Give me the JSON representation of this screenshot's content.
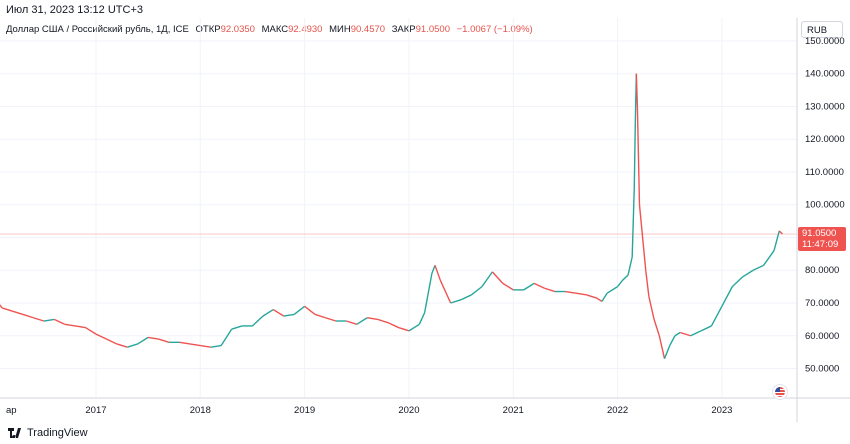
{
  "header": {
    "timestamp": "Июл 31, 2023 13:12 UTC+3",
    "symbol": "Доллар США / Российский рубль, 1Д, ICE",
    "open_label": "ОТКР",
    "open_value": "92.0350",
    "high_label": "МАКС",
    "high_value": "92.4930",
    "low_label": "МИН",
    "low_value": "90.4570",
    "close_label": "ЗАКР",
    "close_value": "91.0500",
    "change": "−1.0067 (−1.09%)"
  },
  "currency_button": "RUB",
  "price_tag": {
    "price": "91.0500",
    "countdown": "11:47:09"
  },
  "footer": {
    "brand": "TradingView"
  },
  "colors": {
    "up": "#26a69a",
    "down": "#ef5350",
    "last_price_line": "#ef5350"
  },
  "icons": {
    "flag": "us-flag-icon",
    "logo": "tradingview-logo-icon"
  },
  "chart_data": {
    "type": "line",
    "title": "Доллар США / Российский рубль, 1Д, ICE",
    "xlabel": "",
    "ylabel": "",
    "x_ticks": [
      "ар",
      "2017",
      "2018",
      "2019",
      "2020",
      "2021",
      "2022",
      "2023"
    ],
    "y_ticks": [
      "50.0000",
      "60.0000",
      "70.0000",
      "80.0000",
      "90.0000",
      "100.0000",
      "110.0000",
      "120.0000",
      "130.0000",
      "140.0000",
      "150.0000"
    ],
    "ylim": [
      41,
      157
    ],
    "grid": true,
    "series": [
      {
        "values": [
          [
            2016.0,
            75.5
          ],
          [
            2016.05,
            70.5
          ],
          [
            2016.1,
            68.5
          ],
          [
            2016.2,
            67.5
          ],
          [
            2016.3,
            66.5
          ],
          [
            2016.4,
            65.5
          ],
          [
            2016.5,
            64.5
          ],
          [
            2016.6,
            65.0
          ],
          [
            2016.7,
            63.5
          ],
          [
            2016.8,
            63.0
          ],
          [
            2016.9,
            62.5
          ],
          [
            2017.0,
            60.5
          ],
          [
            2017.1,
            59.0
          ],
          [
            2017.2,
            57.5
          ],
          [
            2017.3,
            56.5
          ],
          [
            2017.4,
            57.5
          ],
          [
            2017.5,
            59.5
          ],
          [
            2017.6,
            59.0
          ],
          [
            2017.7,
            58.0
          ],
          [
            2017.8,
            58.0
          ],
          [
            2017.9,
            57.5
          ],
          [
            2018.0,
            57.0
          ],
          [
            2018.1,
            56.5
          ],
          [
            2018.2,
            57.0
          ],
          [
            2018.3,
            62.0
          ],
          [
            2018.4,
            63.0
          ],
          [
            2018.5,
            63.0
          ],
          [
            2018.6,
            66.0
          ],
          [
            2018.7,
            68.0
          ],
          [
            2018.8,
            66.0
          ],
          [
            2018.9,
            66.5
          ],
          [
            2019.0,
            69.0
          ],
          [
            2019.1,
            66.5
          ],
          [
            2019.2,
            65.5
          ],
          [
            2019.3,
            64.5
          ],
          [
            2019.4,
            64.5
          ],
          [
            2019.5,
            63.5
          ],
          [
            2019.6,
            65.5
          ],
          [
            2019.7,
            65.0
          ],
          [
            2019.8,
            64.0
          ],
          [
            2019.9,
            62.5
          ],
          [
            2020.0,
            61.5
          ],
          [
            2020.1,
            63.5
          ],
          [
            2020.15,
            67.0
          ],
          [
            2020.22,
            79.0
          ],
          [
            2020.25,
            81.5
          ],
          [
            2020.3,
            77.0
          ],
          [
            2020.4,
            70.0
          ],
          [
            2020.5,
            71.0
          ],
          [
            2020.6,
            72.5
          ],
          [
            2020.7,
            75.0
          ],
          [
            2020.8,
            79.5
          ],
          [
            2020.9,
            76.0
          ],
          [
            2021.0,
            74.0
          ],
          [
            2021.1,
            74.0
          ],
          [
            2021.2,
            76.0
          ],
          [
            2021.3,
            74.5
          ],
          [
            2021.4,
            73.5
          ],
          [
            2021.5,
            73.5
          ],
          [
            2021.6,
            73.0
          ],
          [
            2021.7,
            72.5
          ],
          [
            2021.8,
            71.5
          ],
          [
            2021.85,
            70.5
          ],
          [
            2021.9,
            73.0
          ],
          [
            2022.0,
            75.0
          ],
          [
            2022.05,
            77.0
          ],
          [
            2022.1,
            78.5
          ],
          [
            2022.14,
            84.0
          ],
          [
            2022.16,
            105.0
          ],
          [
            2022.17,
            125.0
          ],
          [
            2022.18,
            140.0
          ],
          [
            2022.19,
            130.0
          ],
          [
            2022.21,
            100.0
          ],
          [
            2022.24,
            90.0
          ],
          [
            2022.27,
            80.0
          ],
          [
            2022.3,
            72.0
          ],
          [
            2022.35,
            65.0
          ],
          [
            2022.4,
            60.0
          ],
          [
            2022.45,
            53.0
          ],
          [
            2022.5,
            57.0
          ],
          [
            2022.55,
            60.0
          ],
          [
            2022.6,
            61.0
          ],
          [
            2022.7,
            60.0
          ],
          [
            2022.8,
            61.5
          ],
          [
            2022.9,
            63.0
          ],
          [
            2023.0,
            69.0
          ],
          [
            2023.1,
            75.0
          ],
          [
            2023.2,
            78.0
          ],
          [
            2023.3,
            80.0
          ],
          [
            2023.4,
            81.5
          ],
          [
            2023.5,
            86.0
          ],
          [
            2023.55,
            92.0
          ],
          [
            2023.58,
            91.05
          ]
        ]
      }
    ]
  }
}
